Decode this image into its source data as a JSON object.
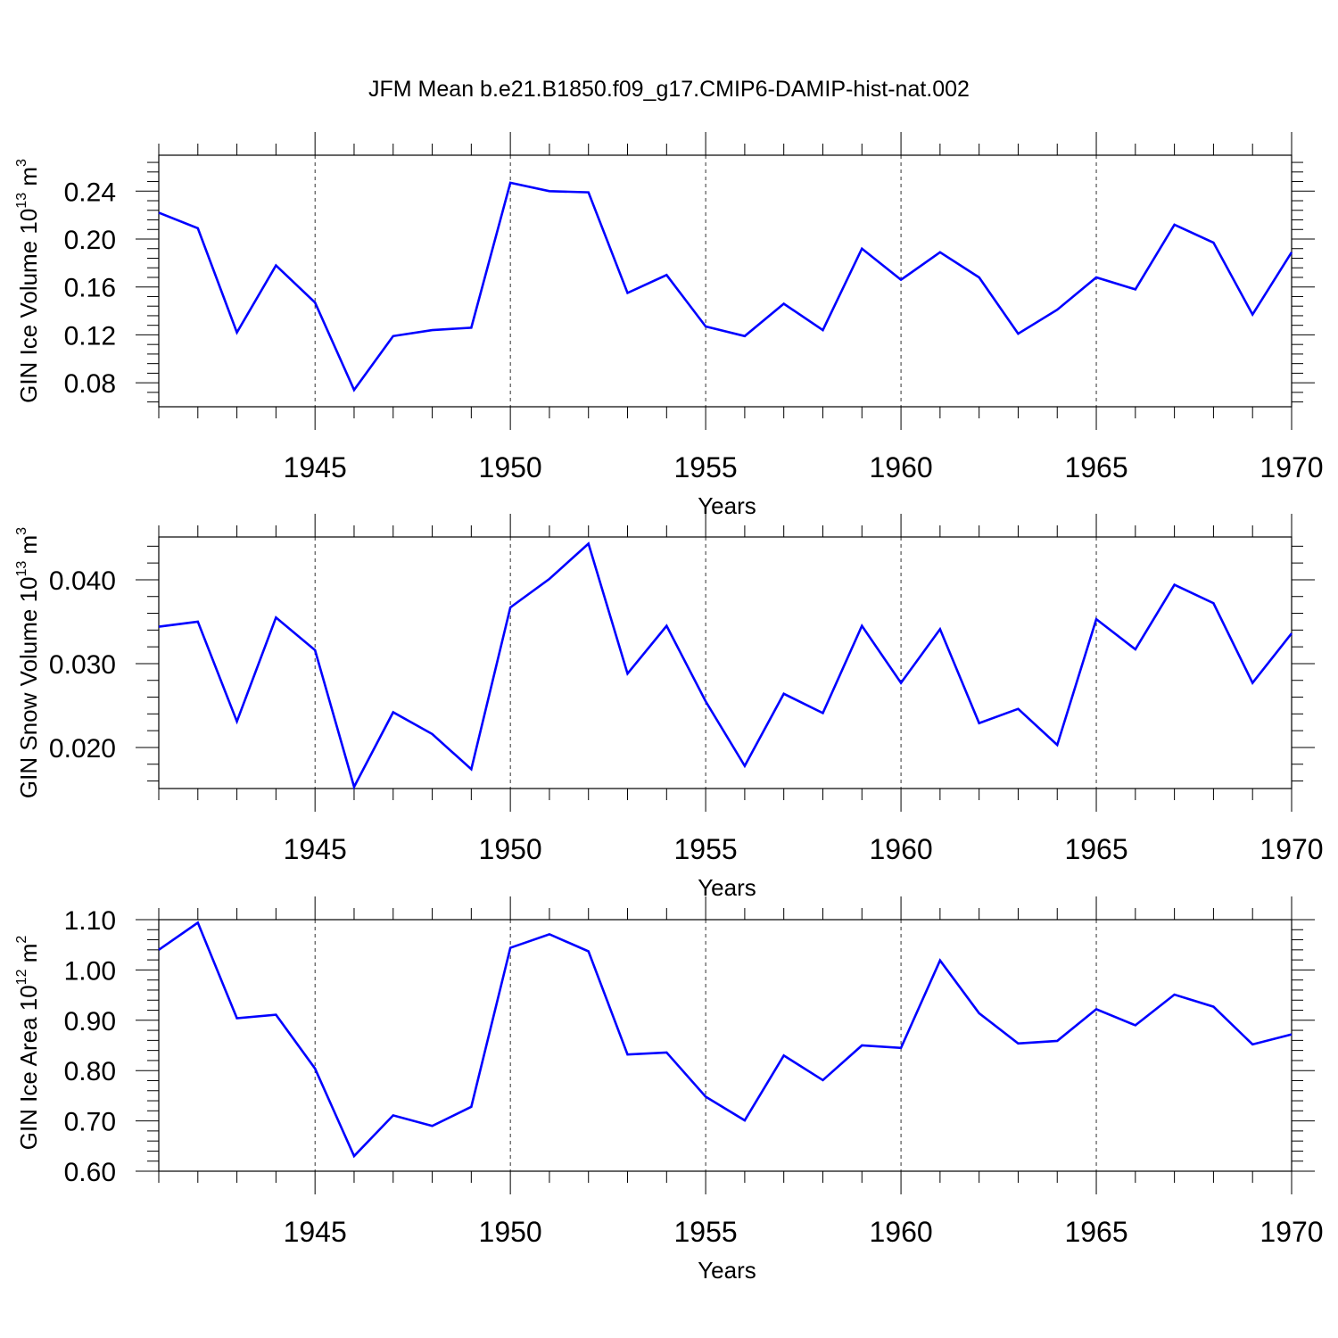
{
  "title": "JFM Mean b.e21.B1850.f09_g17.CMIP6-DAMIP-hist-nat.002",
  "chart_data": [
    {
      "type": "line",
      "xlabel": "Years",
      "ylabel": "GIN Ice Volume 10",
      "ylabel_sup": "13",
      "ylabel_unit": "m",
      "ylabel_unit_sup": "3",
      "xlim": [
        1941,
        1970
      ],
      "ylim": [
        0.06,
        0.27
      ],
      "yticks": [
        0.08,
        0.12,
        0.16,
        0.2,
        0.24
      ],
      "ytick_labels": [
        "0.08",
        "0.12",
        "0.16",
        "0.20",
        "0.24"
      ],
      "xticks": [
        1945,
        1950,
        1955,
        1960,
        1965,
        1970
      ],
      "xtick_labels": [
        "1945",
        "1950",
        "1955",
        "1960",
        "1965",
        "1970"
      ],
      "x": [
        1941,
        1942,
        1943,
        1944,
        1945,
        1946,
        1947,
        1948,
        1949,
        1950,
        1951,
        1952,
        1953,
        1954,
        1955,
        1956,
        1957,
        1958,
        1959,
        1960,
        1961,
        1962,
        1963,
        1964,
        1965,
        1966,
        1967,
        1968,
        1969,
        1970
      ],
      "series": [
        {
          "color": "#0000ff",
          "values": [
            0.222,
            0.209,
            0.122,
            0.178,
            0.147,
            0.074,
            0.119,
            0.124,
            0.126,
            0.247,
            0.24,
            0.239,
            0.155,
            0.17,
            0.127,
            0.119,
            0.146,
            0.124,
            0.192,
            0.166,
            0.189,
            0.168,
            0.121,
            0.141,
            0.168,
            0.158,
            0.212,
            0.197,
            0.137,
            0.189
          ]
        }
      ],
      "grid": "dashed vertical at major x ticks"
    },
    {
      "type": "line",
      "xlabel": "Years",
      "ylabel": "GIN Snow Volume 10",
      "ylabel_sup": "13",
      "ylabel_unit": "m",
      "ylabel_unit_sup": "3",
      "xlim": [
        1941,
        1970
      ],
      "ylim": [
        0.0151,
        0.0451
      ],
      "yticks": [
        0.02,
        0.03,
        0.04
      ],
      "ytick_labels": [
        "0.020",
        "0.030",
        "0.040"
      ],
      "xticks": [
        1945,
        1950,
        1955,
        1960,
        1965,
        1970
      ],
      "xtick_labels": [
        "1945",
        "1950",
        "1955",
        "1960",
        "1965",
        "1970"
      ],
      "x": [
        1941,
        1942,
        1943,
        1944,
        1945,
        1946,
        1947,
        1948,
        1949,
        1950,
        1951,
        1952,
        1953,
        1954,
        1955,
        1956,
        1957,
        1958,
        1959,
        1960,
        1961,
        1962,
        1963,
        1964,
        1965,
        1966,
        1967,
        1968,
        1969,
        1970
      ],
      "series": [
        {
          "color": "#0000ff",
          "values": [
            0.0344,
            0.035,
            0.0231,
            0.0355,
            0.0316,
            0.0153,
            0.0242,
            0.0216,
            0.0174,
            0.0367,
            0.0401,
            0.0443,
            0.0288,
            0.0345,
            0.0255,
            0.0178,
            0.0264,
            0.0241,
            0.0345,
            0.0277,
            0.0341,
            0.0229,
            0.0246,
            0.0203,
            0.0353,
            0.0317,
            0.0394,
            0.0372,
            0.0277,
            0.0336
          ]
        }
      ],
      "grid": "dashed vertical at major x ticks"
    },
    {
      "type": "line",
      "xlabel": "Years",
      "ylabel": "GIN Ice Area 10",
      "ylabel_sup": "12",
      "ylabel_unit": "m",
      "ylabel_unit_sup": "2",
      "xlim": [
        1941,
        1970
      ],
      "ylim": [
        0.6,
        1.1
      ],
      "yticks": [
        0.6,
        0.7,
        0.8,
        0.9,
        1.0,
        1.1
      ],
      "ytick_labels": [
        "0.60",
        "0.70",
        "0.80",
        "0.90",
        "1.00",
        "1.10"
      ],
      "xticks": [
        1945,
        1950,
        1955,
        1960,
        1965,
        1970
      ],
      "xtick_labels": [
        "1945",
        "1950",
        "1955",
        "1960",
        "1965",
        "1970"
      ],
      "x": [
        1941,
        1942,
        1943,
        1944,
        1945,
        1946,
        1947,
        1948,
        1949,
        1950,
        1951,
        1952,
        1953,
        1954,
        1955,
        1956,
        1957,
        1958,
        1959,
        1960,
        1961,
        1962,
        1963,
        1964,
        1965,
        1966,
        1967,
        1968,
        1969,
        1970
      ],
      "series": [
        {
          "color": "#0000ff",
          "values": [
            1.04,
            1.094,
            0.904,
            0.911,
            0.804,
            0.63,
            0.711,
            0.69,
            0.728,
            1.044,
            1.071,
            1.037,
            0.832,
            0.836,
            0.748,
            0.701,
            0.83,
            0.781,
            0.85,
            0.845,
            1.019,
            0.914,
            0.854,
            0.859,
            0.922,
            0.89,
            0.951,
            0.927,
            0.852,
            0.872
          ]
        }
      ],
      "grid": "dashed vertical at major x ticks"
    }
  ]
}
